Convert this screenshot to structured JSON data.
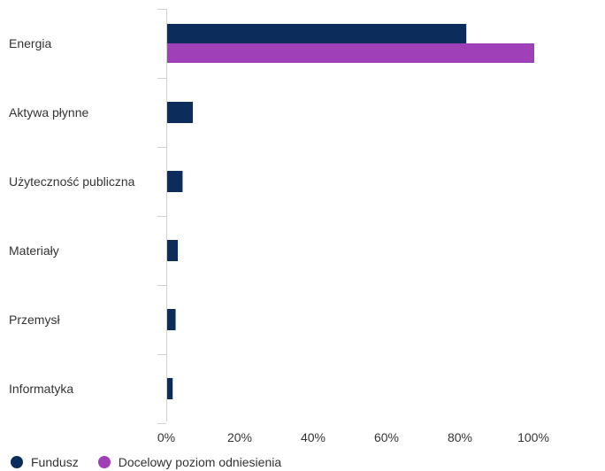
{
  "chart_data": {
    "type": "bar",
    "orientation": "horizontal",
    "categories": [
      "Energia",
      "Aktywa płynne",
      "Użyteczność publiczna",
      "Materiały",
      "Przemysł",
      "Informatyka"
    ],
    "series": [
      {
        "name": "Fundusz",
        "values": [
          81.5,
          7.0,
          4.2,
          2.9,
          2.3,
          1.5
        ]
      },
      {
        "name": "Docelowy poziom odniesienia",
        "values": [
          100.0,
          null,
          null,
          null,
          null,
          null
        ]
      }
    ],
    "x_ticks": [
      "0%",
      "20%",
      "40%",
      "60%",
      "80%",
      "100%"
    ],
    "xlim": [
      0,
      120
    ],
    "xlabel": "",
    "ylabel": "",
    "grid": false,
    "legend_position": "bottom-left",
    "colors": {
      "Fundusz": "#0c2d5c",
      "Docelowy poziom odniesienia": "#a040b8",
      "axis": "#d0d0d0",
      "text": "#333333"
    }
  }
}
